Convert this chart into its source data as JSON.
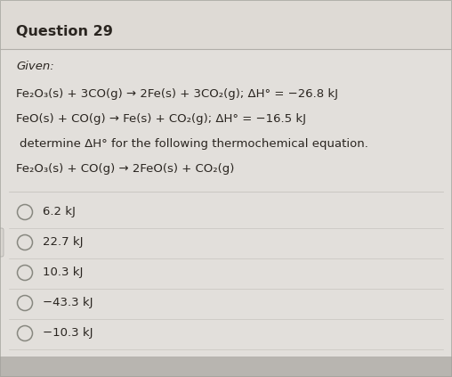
{
  "title": "Question 29",
  "bg_outer": "#c8c5c0",
  "bg_header": "#dedad5",
  "bg_content": "#e2dfdb",
  "given_label": "Given:",
  "equation1": "Fe₂O₃(s) + 3CO(g) → 2Fe(s) + 3CO₂(g); ΔH° = −26.8 kJ",
  "equation2": "FeO(s) + CO(g) → Fe(s) + CO₂(g); ΔH° = −16.5 kJ",
  "determine_text": "determine ΔH° for the following thermochemical equation.",
  "target_equation": "Fe₂O₃(s) + CO(g) → 2FeO(s) + CO₂(g)",
  "choices": [
    "6.2 kJ",
    "22.7 kJ",
    "10.3 kJ",
    "−43.3 kJ",
    "−10.3 kJ"
  ],
  "title_fontsize": 11.5,
  "body_fontsize": 9.5,
  "text_color": "#2a2520",
  "circle_color": "#888880",
  "header_line_color": "#b0ada8",
  "content_line_color": "#c0bdb8"
}
